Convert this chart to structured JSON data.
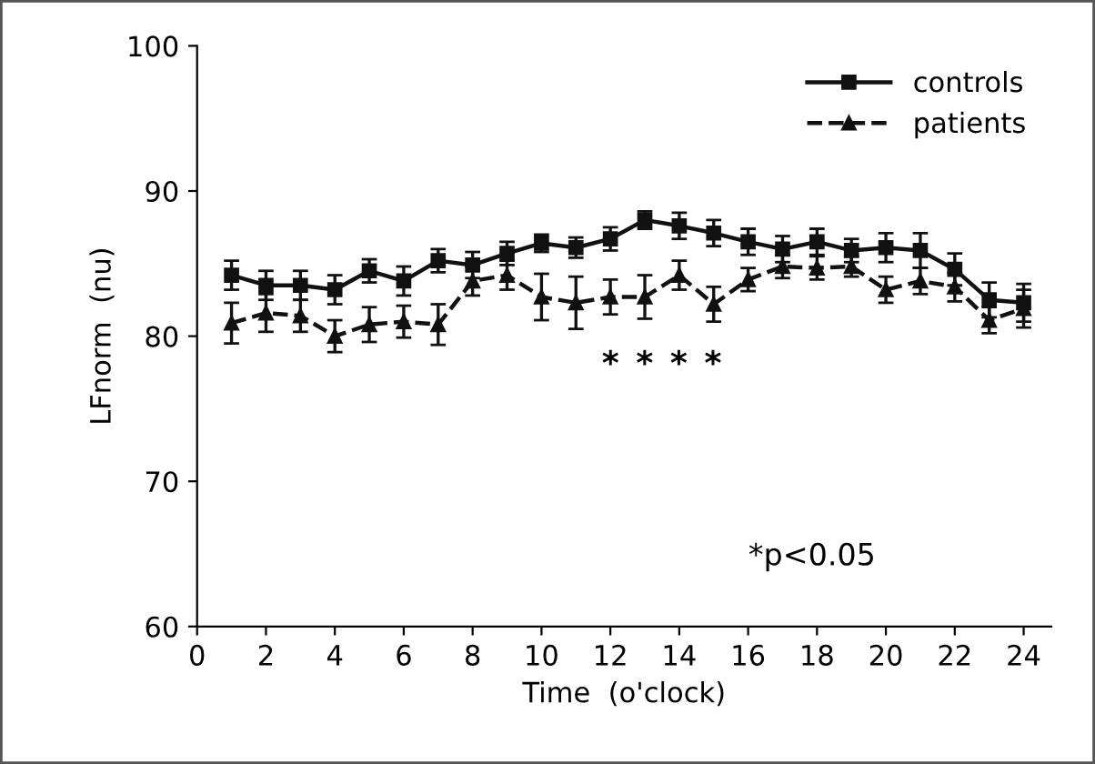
{
  "chart_data": {
    "type": "line",
    "xlabel": "Time  (o'clock)",
    "ylabel": "LFnorm  (nu)",
    "x": [
      1,
      2,
      3,
      4,
      5,
      6,
      7,
      8,
      9,
      10,
      11,
      12,
      13,
      14,
      15,
      16,
      17,
      18,
      19,
      20,
      21,
      22,
      23,
      24
    ],
    "series": [
      {
        "name": "controls",
        "color": "#111111",
        "marker": "square",
        "line_style": "solid",
        "values": [
          84.2,
          83.5,
          83.5,
          83.2,
          84.5,
          83.8,
          85.2,
          84.9,
          85.7,
          86.4,
          86.1,
          86.7,
          88.0,
          87.6,
          87.1,
          86.5,
          86.0,
          86.5,
          85.9,
          86.1,
          85.9,
          84.6,
          82.5,
          82.3
        ],
        "errors": [
          1,
          1,
          1,
          1,
          0.8,
          1,
          0.8,
          0.9,
          0.8,
          0.6,
          0.7,
          0.8,
          0.6,
          0.9,
          0.9,
          0.9,
          0.9,
          0.9,
          0.8,
          1,
          1.2,
          1.1,
          1.2,
          1.3
        ]
      },
      {
        "name": "patients",
        "color": "#111111",
        "marker": "triangle",
        "line_style": "dashed",
        "values": [
          80.9,
          81.6,
          81.4,
          80.0,
          80.8,
          81.0,
          80.8,
          83.8,
          84.2,
          82.7,
          82.3,
          82.7,
          82.7,
          84.2,
          82.2,
          83.9,
          84.8,
          84.7,
          84.8,
          83.2,
          83.8,
          83.4,
          81.1,
          81.9
        ],
        "errors": [
          1.4,
          1.3,
          1.1,
          1.1,
          1.2,
          1.1,
          1.4,
          1.0,
          1.0,
          1.6,
          1.8,
          1.2,
          1.5,
          1.0,
          1.2,
          0.8,
          0.8,
          0.8,
          0.7,
          0.9,
          0.9,
          1.0,
          0.9,
          1.3
        ]
      }
    ],
    "xlim": [
      0,
      24.8
    ],
    "xticks": [
      0,
      2,
      4,
      6,
      8,
      10,
      12,
      14,
      16,
      18,
      20,
      22,
      24
    ],
    "ylim": [
      60,
      100
    ],
    "yticks": [
      60,
      70,
      80,
      90,
      100
    ],
    "grid": false,
    "legend": "top right",
    "annotations": [
      "*",
      "*",
      "*",
      "*",
      "*p<0.05"
    ]
  }
}
